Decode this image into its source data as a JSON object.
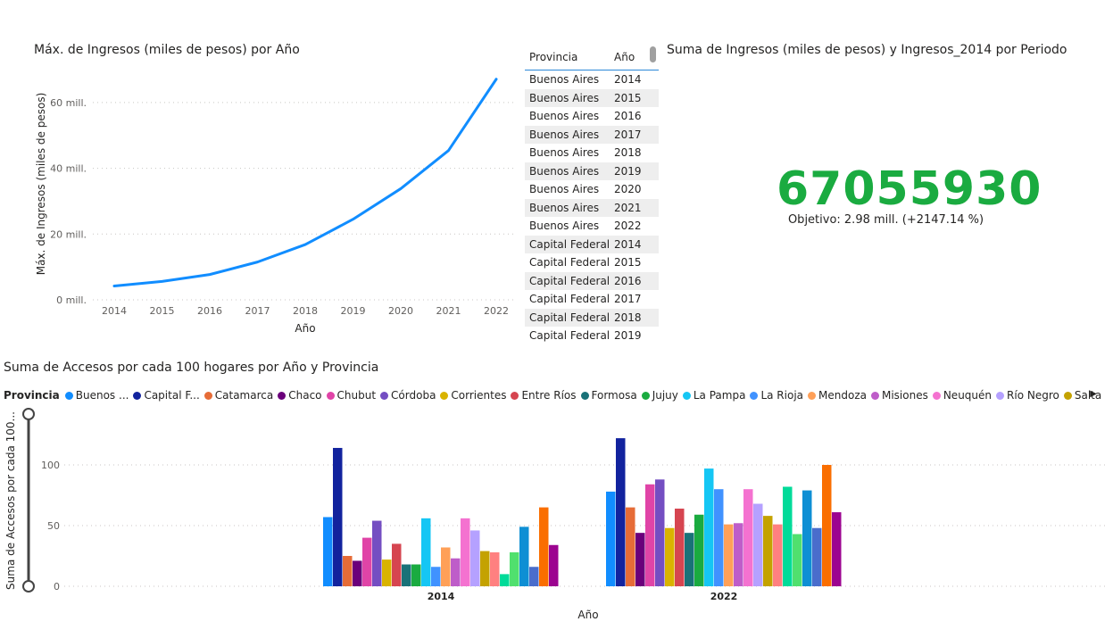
{
  "line_chart": {
    "title": "Máx. de Ingresos (miles de pesos) por Año",
    "chart_data": {
      "type": "line",
      "title": "Máx. de Ingresos (miles de pesos) por Año",
      "xlabel": "Año",
      "ylabel": "Máx. de Ingresos (miles de pesos)",
      "x": [
        "2014",
        "2015",
        "2016",
        "2017",
        "2018",
        "2019",
        "2020",
        "2021",
        "2022"
      ],
      "values": [
        4.2,
        5.6,
        7.7,
        11.5,
        16.8,
        24.5,
        33.8,
        45.4,
        67.1
      ],
      "y_unit": "mill.",
      "y_ticks": [
        "0 mill.",
        "20 mill.",
        "40 mill.",
        "60 mill."
      ],
      "ylim": [
        0,
        70
      ],
      "grid": true,
      "color": "#118dff"
    }
  },
  "table": {
    "headers": [
      "Provincia",
      "Año"
    ],
    "rows": [
      [
        "Buenos Aires",
        "2014"
      ],
      [
        "Buenos Aires",
        "2015"
      ],
      [
        "Buenos Aires",
        "2016"
      ],
      [
        "Buenos Aires",
        "2017"
      ],
      [
        "Buenos Aires",
        "2018"
      ],
      [
        "Buenos Aires",
        "2019"
      ],
      [
        "Buenos Aires",
        "2020"
      ],
      [
        "Buenos Aires",
        "2021"
      ],
      [
        "Buenos Aires",
        "2022"
      ],
      [
        "Capital Federal",
        "2014"
      ],
      [
        "Capital Federal",
        "2015"
      ],
      [
        "Capital Federal",
        "2016"
      ],
      [
        "Capital Federal",
        "2017"
      ],
      [
        "Capital Federal",
        "2018"
      ],
      [
        "Capital Federal",
        "2019"
      ]
    ]
  },
  "kpi": {
    "title": "Suma de Ingresos (miles de pesos) y Ingresos_2014 por Periodo",
    "value": "67055930",
    "goal": "Objetivo: 2.98 mill. (+2147.14 %)",
    "color": "#1aab40"
  },
  "bar_chart": {
    "title": "Suma de Accesos por cada 100 hogares por Año y Provincia",
    "legend_title": "Provincia",
    "chart_data": {
      "type": "bar",
      "title": "Suma de Accesos por cada 100 hogares por Año y Provincia",
      "xlabel": "Año",
      "ylabel": "Suma de Accesos por cada 100...",
      "categories": [
        "2014",
        "2022"
      ],
      "ylim": [
        0,
        130
      ],
      "y_ticks": [
        "0",
        "50",
        "100"
      ],
      "grid": true,
      "legend_position": "top",
      "series": [
        {
          "name": "Buenos ...",
          "color": "#118dff",
          "values": [
            57,
            78
          ]
        },
        {
          "name": "Capital F...",
          "color": "#12239e",
          "values": [
            114,
            122
          ]
        },
        {
          "name": "Catamarca",
          "color": "#e66c37",
          "values": [
            25,
            65
          ]
        },
        {
          "name": "Chaco",
          "color": "#6b007b",
          "values": [
            21,
            44
          ]
        },
        {
          "name": "Chubut",
          "color": "#e044a7",
          "values": [
            40,
            84
          ]
        },
        {
          "name": "Córdoba",
          "color": "#744ec2",
          "values": [
            54,
            88
          ]
        },
        {
          "name": "Corrientes",
          "color": "#d9b300",
          "values": [
            22,
            48
          ]
        },
        {
          "name": "Entre Ríos",
          "color": "#d64550",
          "values": [
            35,
            64
          ]
        },
        {
          "name": "Formosa",
          "color": "#197278",
          "values": [
            18,
            44
          ]
        },
        {
          "name": "Jujuy",
          "color": "#1aab40",
          "values": [
            18,
            59
          ]
        },
        {
          "name": "La Pampa",
          "color": "#15c6f4",
          "values": [
            56,
            97
          ]
        },
        {
          "name": "La Rioja",
          "color": "#4092ff",
          "values": [
            16,
            80
          ]
        },
        {
          "name": "Mendoza",
          "color": "#ffa058",
          "values": [
            32,
            51
          ]
        },
        {
          "name": "Misiones",
          "color": "#be5dc9",
          "values": [
            23,
            52
          ]
        },
        {
          "name": "Neuquén",
          "color": "#f472d0",
          "values": [
            56,
            80
          ]
        },
        {
          "name": "Río Negro",
          "color": "#b5a1ff",
          "values": [
            46,
            68
          ]
        },
        {
          "name": "Salta",
          "color": "#c4a200",
          "values": [
            29,
            58
          ]
        },
        {
          "color": "#ff8080",
          "values": [
            28,
            51
          ]
        },
        {
          "color": "#00db99",
          "values": [
            10,
            82
          ]
        },
        {
          "color": "#50e06e",
          "values": [
            28,
            43
          ]
        },
        {
          "color": "#0e8fd4",
          "values": [
            49,
            79
          ]
        },
        {
          "color": "#4a6dcc",
          "values": [
            16,
            48
          ]
        },
        {
          "color": "#fa6e00",
          "values": [
            65,
            100
          ]
        },
        {
          "color": "#9c0490",
          "values": [
            34,
            61
          ]
        }
      ]
    }
  }
}
